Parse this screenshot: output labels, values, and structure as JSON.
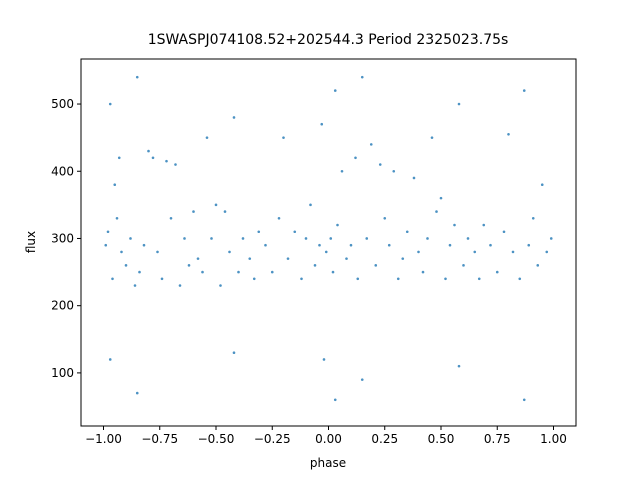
{
  "chart_data": {
    "type": "scatter",
    "title": "1SWASPJ074108.52+202544.3 Period 2325023.75s",
    "x_label": "phase",
    "y_label": "flux",
    "xlim": [
      -1.1,
      1.1
    ],
    "ylim": [
      21,
      567
    ],
    "xticks": [
      {
        "value": -1,
        "label": "−1.00"
      },
      {
        "value": -0.75,
        "label": "−0.75"
      },
      {
        "value": -0.5,
        "label": "−0.50"
      },
      {
        "value": -0.25,
        "label": "−0.25"
      },
      {
        "value": 0,
        "label": "0.00"
      },
      {
        "value": 0.25,
        "label": "0.25"
      },
      {
        "value": 0.5,
        "label": "0.50"
      },
      {
        "value": 0.75,
        "label": "0.75"
      },
      {
        "value": 1,
        "label": "1.00"
      }
    ],
    "yticks": [
      100,
      200,
      300,
      400,
      500
    ],
    "color": "#1f77b4",
    "x": [
      -0.99,
      -0.98,
      -0.97,
      -0.97,
      -0.96,
      -0.95,
      -0.94,
      -0.93,
      -0.92,
      -0.9,
      -0.88,
      -0.86,
      -0.85,
      -0.85,
      -0.84,
      -0.82,
      -0.8,
      -0.78,
      -0.76,
      -0.74,
      -0.72,
      -0.7,
      -0.68,
      -0.66,
      -0.64,
      -0.62,
      -0.6,
      -0.58,
      -0.56,
      -0.54,
      -0.52,
      -0.5,
      -0.48,
      -0.46,
      -0.44,
      -0.42,
      -0.42,
      -0.4,
      -0.38,
      -0.35,
      -0.33,
      -0.31,
      -0.28,
      -0.25,
      -0.22,
      -0.2,
      -0.18,
      -0.15,
      -0.12,
      -0.1,
      -0.08,
      -0.06,
      -0.04,
      -0.03,
      -0.02,
      -0.01,
      0.01,
      0.02,
      0.03,
      0.03,
      0.04,
      0.06,
      0.08,
      0.1,
      0.12,
      0.13,
      0.15,
      0.15,
      0.17,
      0.19,
      0.21,
      0.23,
      0.25,
      0.27,
      0.29,
      0.31,
      0.33,
      0.35,
      0.38,
      0.4,
      0.42,
      0.44,
      0.46,
      0.48,
      0.5,
      0.52,
      0.54,
      0.56,
      0.58,
      0.58,
      0.6,
      0.62,
      0.65,
      0.67,
      0.69,
      0.72,
      0.75,
      0.78,
      0.8,
      0.82,
      0.85,
      0.87,
      0.87,
      0.89,
      0.91,
      0.93,
      0.95,
      0.97,
      0.99
    ],
    "y": [
      290,
      310,
      500,
      120,
      240,
      380,
      330,
      420,
      280,
      260,
      300,
      230,
      540,
      70,
      250,
      290,
      430,
      420,
      280,
      240,
      415,
      330,
      410,
      230,
      300,
      260,
      340,
      270,
      250,
      450,
      300,
      350,
      230,
      340,
      280,
      480,
      130,
      250,
      300,
      270,
      240,
      310,
      290,
      250,
      330,
      450,
      270,
      310,
      240,
      300,
      350,
      260,
      290,
      470,
      120,
      280,
      300,
      250,
      520,
      60,
      320,
      400,
      270,
      290,
      420,
      240,
      540,
      90,
      300,
      440,
      260,
      410,
      330,
      290,
      400,
      240,
      270,
      310,
      390,
      280,
      250,
      300,
      450,
      340,
      360,
      240,
      290,
      320,
      500,
      110,
      260,
      300,
      280,
      240,
      320,
      290,
      250,
      310,
      455,
      280,
      240,
      520,
      60,
      290,
      330,
      260,
      380,
      280,
      300
    ]
  }
}
